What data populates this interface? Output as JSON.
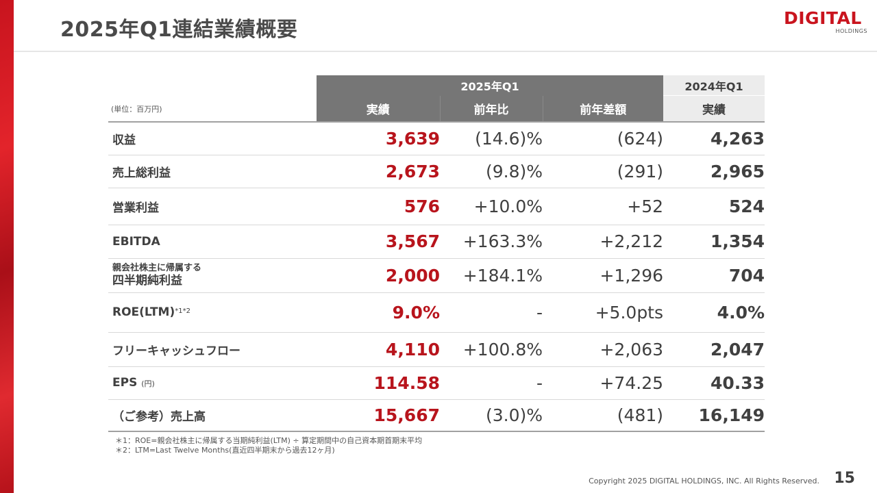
{
  "title": "2025年Q1連結業績概要",
  "logo": {
    "main": "DIGITAL",
    "sub": "HOLDINGS"
  },
  "unit": "(単位：百万円)",
  "header": {
    "group_current": "2025年Q1",
    "group_prev": "2024年Q1",
    "col_actual": "実績",
    "col_yoy": "前年比",
    "col_diff": "前年差額",
    "col_prev_actual": "実績"
  },
  "rows": [
    {
      "label": "収益",
      "current": "3,639",
      "yoy": "(14.6)%",
      "diff": "(624)",
      "prev": "4,263"
    },
    {
      "label": "売上総利益",
      "current": "2,673",
      "yoy": "(9.8)%",
      "diff": "(291)",
      "prev": "2,965"
    },
    {
      "label": "営業利益",
      "current": "576",
      "yoy": "+10.0%",
      "diff": "+52",
      "prev": "524"
    },
    {
      "label": "EBITDA",
      "current": "3,567",
      "yoy": "+163.3%",
      "diff": "+2,212",
      "prev": "1,354"
    },
    {
      "label_line1": "親会社株主に帰属する",
      "label_line2": "四半期純利益",
      "current": "2,000",
      "yoy": "+184.1%",
      "diff": "+1,296",
      "prev": "704"
    },
    {
      "label": "ROE(LTM)",
      "label_sup": "*1*2",
      "current": "9.0%",
      "yoy": "-",
      "diff": "+5.0pts",
      "prev": "4.0%"
    },
    {
      "label": "フリーキャッシュフロー",
      "current": "4,110",
      "yoy": "+100.8%",
      "diff": "+2,063",
      "prev": "2,047"
    },
    {
      "label": "EPS",
      "label_unit": "(円)",
      "current": "114.58",
      "yoy": "-",
      "diff": "+74.25",
      "prev": "40.33"
    },
    {
      "label": "（ご参考）売上高",
      "current": "15,667",
      "yoy": "(3.0)%",
      "diff": "(481)",
      "prev": "16,149"
    }
  ],
  "notes": [
    "＊1：ROE=親会社株主に帰属する当期純利益(LTM) ÷ 算定期間中の自己資本期首期末平均",
    "＊2：LTM=Last Twelve Months(直近四半期末から過去12ヶ月)"
  ],
  "copyright": "Copyright 2025 DIGITAL HOLDINGS, INC. All Rights Reserved.",
  "page_number": "15",
  "colors": {
    "accent": "#b8141c",
    "header_dark": "#767676",
    "header_light": "#ececec"
  }
}
